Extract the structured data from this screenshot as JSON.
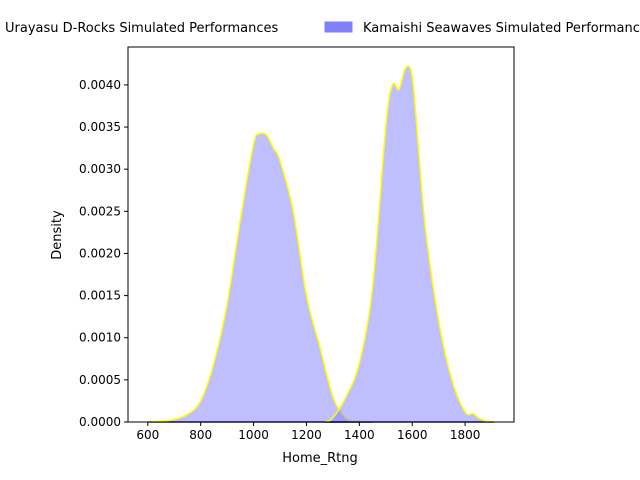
{
  "chart_data": {
    "type": "area",
    "xlabel": "Home_Rtng",
    "ylabel": "Density",
    "xlim": [
      525,
      1985
    ],
    "ylim": [
      0,
      0.00445
    ],
    "x_ticks": [
      600,
      800,
      1000,
      1200,
      1400,
      1600,
      1800
    ],
    "y_ticks": [
      0.0,
      0.0005,
      0.001,
      0.0015,
      0.002,
      0.0025,
      0.003,
      0.0035,
      0.004
    ],
    "y_tick_labels": [
      "0.0000",
      "0.0005",
      "0.0010",
      "0.0015",
      "0.0020",
      "0.0025",
      "0.0030",
      "0.0035",
      "0.0040"
    ],
    "legend_placement": "top, above plot (clipped)",
    "grid": false,
    "series": [
      {
        "name": "Urayasu D-Rocks Simulated Performances",
        "fill_color": "#8080ff",
        "line_color": "#ffff00",
        "x": [
          600,
          650,
          700,
          750,
          800,
          850,
          900,
          950,
          1000,
          1025,
          1050,
          1075,
          1100,
          1150,
          1200,
          1250,
          1300,
          1350,
          1400,
          1450
        ],
        "y": [
          0.0,
          1e-05,
          3e-05,
          9e-05,
          0.00025,
          0.0007,
          0.0014,
          0.0024,
          0.0033,
          0.00342,
          0.0034,
          0.00325,
          0.0031,
          0.0025,
          0.0015,
          0.0009,
          0.0003,
          4e-05,
          1e-05,
          0.0
        ]
      },
      {
        "name": "Kamaishi Seawaves Simulated Performances",
        "fill_color": "#8080ff",
        "line_color": "#ffff00",
        "x": [
          1270,
          1300,
          1350,
          1400,
          1450,
          1500,
          1525,
          1550,
          1575,
          1600,
          1625,
          1650,
          1700,
          1750,
          1800,
          1830,
          1850,
          1880,
          1910
        ],
        "y": [
          0.0,
          5e-05,
          0.0003,
          0.0007,
          0.0016,
          0.0035,
          0.004,
          0.00395,
          0.0042,
          0.0041,
          0.0032,
          0.0023,
          0.0012,
          0.0005,
          0.00012,
          0.0001,
          5e-05,
          1e-05,
          0.0
        ]
      }
    ]
  }
}
